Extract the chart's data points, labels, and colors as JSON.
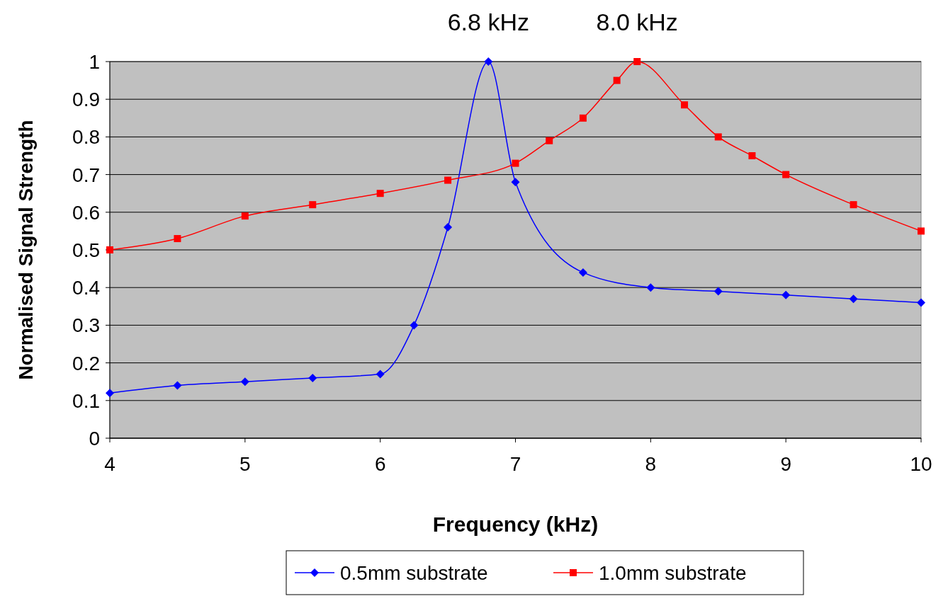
{
  "chart_data": {
    "type": "line",
    "xlabel": "Frequency (kHz)",
    "ylabel": "Normalised Signal Strength",
    "xlim": [
      4,
      10
    ],
    "xticks": [
      4,
      5,
      6,
      7,
      8,
      9,
      10
    ],
    "ylim": [
      0,
      1
    ],
    "yticks": [
      0,
      0.1,
      0.2,
      0.3,
      0.4,
      0.5,
      0.6,
      0.7,
      0.8,
      0.9,
      1
    ],
    "grid": "y",
    "legend": "bottom",
    "line_style": "solid",
    "annotations": [
      {
        "text": "6.8 kHz",
        "x": 6.8,
        "y": 1
      },
      {
        "text": "8.0 kHz",
        "x": 7.9,
        "y": 1
      }
    ],
    "series": [
      {
        "name": "0.5mm substrate",
        "color": "#0000ff",
        "marker": "diamond",
        "x": [
          4,
          4.5,
          5,
          5.5,
          6,
          6.25,
          6.5,
          6.8,
          7,
          7.5,
          8,
          8.5,
          9,
          9.5,
          10
        ],
        "values": [
          0.12,
          0.14,
          0.15,
          0.16,
          0.17,
          0.3,
          0.56,
          1.0,
          0.68,
          0.44,
          0.4,
          0.39,
          0.38,
          0.37,
          0.36
        ]
      },
      {
        "name": "1.0mm substrate",
        "color": "#ff0000",
        "marker": "square",
        "x": [
          4,
          4.5,
          5,
          5.5,
          6,
          6.5,
          7,
          7.25,
          7.5,
          7.75,
          7.9,
          8.25,
          8.5,
          8.75,
          9,
          9.5,
          10
        ],
        "values": [
          0.5,
          0.53,
          0.59,
          0.62,
          0.65,
          0.685,
          0.73,
          0.79,
          0.85,
          0.95,
          1.0,
          0.885,
          0.8,
          0.75,
          0.7,
          0.62,
          0.55
        ]
      }
    ]
  }
}
